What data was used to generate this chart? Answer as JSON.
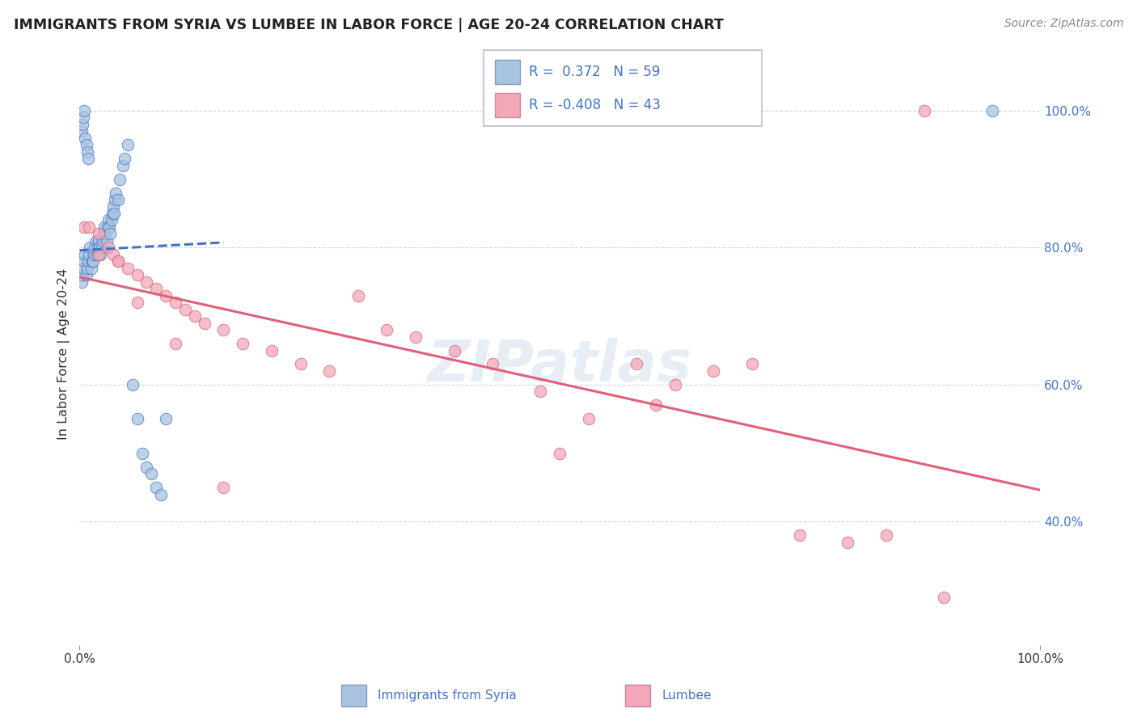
{
  "title": "IMMIGRANTS FROM SYRIA VS LUMBEE IN LABOR FORCE | AGE 20-24 CORRELATION CHART",
  "source": "Source: ZipAtlas.com",
  "ylabel": "In Labor Force | Age 20-24",
  "xlim": [
    0.0,
    1.0
  ],
  "ylim": [
    0.22,
    1.07
  ],
  "yticks": [
    0.4,
    0.6,
    0.8,
    1.0
  ],
  "ytick_labels": [
    "40.0%",
    "60.0%",
    "80.0%",
    "100.0%"
  ],
  "legend_r_syria": " 0.372",
  "legend_n_syria": "59",
  "legend_r_lumbee": "-0.408",
  "legend_n_lumbee": "43",
  "color_syria": "#a8c4e0",
  "color_lumbee": "#f4a7b9",
  "line_color_syria": "#4472c4",
  "line_color_lumbee": "#e0607a",
  "watermark": "ZIPatlas",
  "syria_x": [
    0.002,
    0.003,
    0.004,
    0.005,
    0.006,
    0.007,
    0.008,
    0.009,
    0.01,
    0.011,
    0.012,
    0.013,
    0.014,
    0.015,
    0.016,
    0.017,
    0.018,
    0.019,
    0.02,
    0.021,
    0.022,
    0.023,
    0.024,
    0.025,
    0.026,
    0.027,
    0.028,
    0.029,
    0.03,
    0.031,
    0.032,
    0.033,
    0.034,
    0.035,
    0.036,
    0.037,
    0.038,
    0.04,
    0.042,
    0.045,
    0.047,
    0.05,
    0.055,
    0.06,
    0.065,
    0.07,
    0.075,
    0.08,
    0.085,
    0.09,
    0.002,
    0.003,
    0.004,
    0.005,
    0.006,
    0.007,
    0.008,
    0.009,
    0.95
  ],
  "syria_y": [
    0.75,
    0.76,
    0.77,
    0.78,
    0.79,
    0.76,
    0.77,
    0.78,
    0.79,
    0.8,
    0.77,
    0.78,
    0.78,
    0.79,
    0.8,
    0.81,
    0.79,
    0.8,
    0.81,
    0.8,
    0.79,
    0.8,
    0.81,
    0.82,
    0.83,
    0.82,
    0.81,
    0.83,
    0.84,
    0.83,
    0.82,
    0.84,
    0.85,
    0.86,
    0.85,
    0.87,
    0.88,
    0.87,
    0.9,
    0.92,
    0.93,
    0.95,
    0.6,
    0.55,
    0.5,
    0.48,
    0.47,
    0.45,
    0.44,
    0.55,
    0.97,
    0.98,
    0.99,
    1.0,
    0.96,
    0.95,
    0.94,
    0.93,
    1.0
  ],
  "lumbee_x": [
    0.005,
    0.01,
    0.02,
    0.03,
    0.035,
    0.04,
    0.05,
    0.06,
    0.07,
    0.08,
    0.09,
    0.1,
    0.11,
    0.12,
    0.13,
    0.15,
    0.17,
    0.2,
    0.23,
    0.26,
    0.29,
    0.32,
    0.35,
    0.39,
    0.43,
    0.48,
    0.53,
    0.58,
    0.62,
    0.66,
    0.7,
    0.75,
    0.8,
    0.84,
    0.88,
    0.02,
    0.04,
    0.06,
    0.1,
    0.15,
    0.5,
    0.6,
    0.9
  ],
  "lumbee_y": [
    0.83,
    0.83,
    0.82,
    0.8,
    0.79,
    0.78,
    0.77,
    0.76,
    0.75,
    0.74,
    0.73,
    0.72,
    0.71,
    0.7,
    0.69,
    0.68,
    0.66,
    0.65,
    0.63,
    0.62,
    0.73,
    0.68,
    0.67,
    0.65,
    0.63,
    0.59,
    0.55,
    0.63,
    0.6,
    0.62,
    0.63,
    0.38,
    0.37,
    0.38,
    1.0,
    0.79,
    0.78,
    0.72,
    0.66,
    0.45,
    0.5,
    0.57,
    0.29
  ]
}
